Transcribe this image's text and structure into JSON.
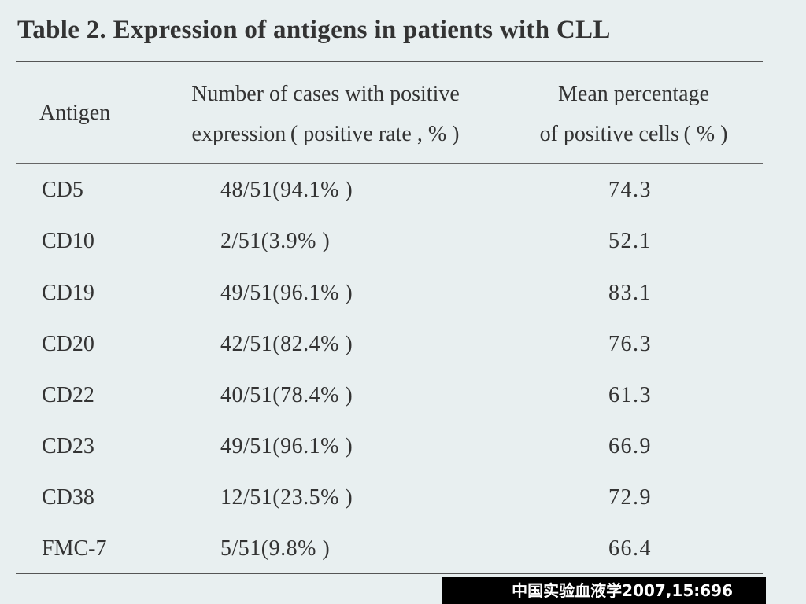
{
  "title": "Table 2.  Expression of antigens in patients with CLL",
  "headers": {
    "antigen": "Antigen",
    "count_line1": "Number of cases with positive",
    "count_line2": "expression ( positive rate , % )",
    "mean_line1": "Mean percentage",
    "mean_line2": "of positive cells ( % )"
  },
  "rows": [
    {
      "antigen": "CD5",
      "count": "48/51(94.1% )",
      "mean": "74.3"
    },
    {
      "antigen": "CD10",
      "count": "2/51(3.9% )",
      "mean": "52.1"
    },
    {
      "antigen": "CD19",
      "count": "49/51(96.1% )",
      "mean": "83.1"
    },
    {
      "antigen": "CD20",
      "count": "42/51(82.4% )",
      "mean": "76.3"
    },
    {
      "antigen": "CD22",
      "count": "40/51(78.4% )",
      "mean": "61.3"
    },
    {
      "antigen": "CD23",
      "count": "49/51(96.1% )",
      "mean": "66.9"
    },
    {
      "antigen": "CD38",
      "count": "12/51(23.5% )",
      "mean": "72.9"
    },
    {
      "antigen": "FMC-7",
      "count": "5/51(9.8% )",
      "mean": "66.4"
    }
  ],
  "footer": "中国实验血液学2007,15:696"
}
